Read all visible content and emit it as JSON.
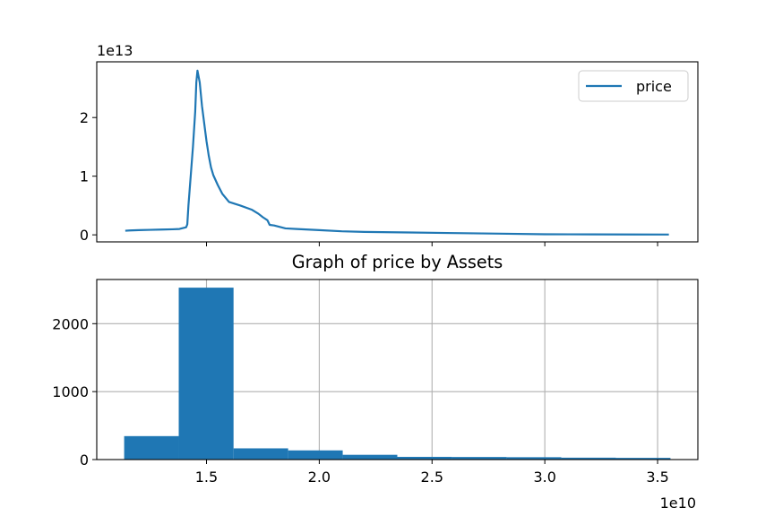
{
  "chart_data": [
    {
      "type": "line",
      "title": "",
      "xlabel": "",
      "ylabel": "",
      "x_tick_values": [
        1.5,
        2.0,
        2.5,
        3.0,
        3.5
      ],
      "y_offset_text": "1e13",
      "yticks": [
        0,
        1,
        2
      ],
      "ylim": [
        -0.12,
        2.95
      ],
      "xlim": [
        1.0135,
        3.6785
      ],
      "legend": {
        "position": "upper right",
        "entries": [
          "price"
        ]
      },
      "grid": false,
      "color": "#1f77b4",
      "series": [
        {
          "name": "price",
          "x": [
            1.14,
            1.16,
            1.2,
            1.25,
            1.3,
            1.35,
            1.38,
            1.4,
            1.41,
            1.415,
            1.42,
            1.43,
            1.44,
            1.45,
            1.455,
            1.46,
            1.47,
            1.48,
            1.49,
            1.5,
            1.51,
            1.52,
            1.53,
            1.55,
            1.57,
            1.6,
            1.65,
            1.7,
            1.73,
            1.75,
            1.77,
            1.78,
            1.8,
            1.85,
            1.9,
            2.0,
            2.1,
            2.2,
            2.4,
            2.6,
            2.8,
            3.0,
            3.2,
            3.4,
            3.55
          ],
          "y": [
            0.07,
            0.075,
            0.08,
            0.085,
            0.09,
            0.095,
            0.1,
            0.12,
            0.13,
            0.18,
            0.5,
            1.0,
            1.5,
            2.1,
            2.6,
            2.8,
            2.6,
            2.2,
            1.9,
            1.6,
            1.35,
            1.15,
            1.02,
            0.85,
            0.7,
            0.56,
            0.5,
            0.43,
            0.36,
            0.3,
            0.25,
            0.17,
            0.16,
            0.11,
            0.1,
            0.08,
            0.06,
            0.05,
            0.04,
            0.03,
            0.02,
            0.01,
            0.008,
            0.006,
            0.005
          ]
        }
      ]
    },
    {
      "type": "bar",
      "title": "Graph of price by Assets",
      "xlabel": "",
      "ylabel": "",
      "x_offset_text": "1e10",
      "xticks": [
        "1.5",
        "2.0",
        "2.5",
        "3.0",
        "3.5"
      ],
      "x_tick_values": [
        1.5,
        2.0,
        2.5,
        3.0,
        3.5
      ],
      "yticks": [
        "0",
        "1000",
        "2000"
      ],
      "y_tick_values": [
        0,
        1000,
        2000
      ],
      "xlim": [
        1.0135,
        3.6785
      ],
      "ylim": [
        0,
        2650
      ],
      "grid": true,
      "color": "#1f77b4",
      "bins": [
        {
          "x0": 1.135,
          "x1": 1.377,
          "count": 345
        },
        {
          "x0": 1.377,
          "x1": 1.62,
          "count": 2530
        },
        {
          "x0": 1.62,
          "x1": 1.862,
          "count": 165
        },
        {
          "x0": 1.862,
          "x1": 2.104,
          "count": 135
        },
        {
          "x0": 2.104,
          "x1": 2.346,
          "count": 70
        },
        {
          "x0": 2.346,
          "x1": 2.588,
          "count": 40
        },
        {
          "x0": 2.588,
          "x1": 2.831,
          "count": 38
        },
        {
          "x0": 2.831,
          "x1": 3.073,
          "count": 35
        },
        {
          "x0": 3.073,
          "x1": 3.315,
          "count": 28
        },
        {
          "x0": 3.315,
          "x1": 3.557,
          "count": 25
        }
      ]
    }
  ]
}
